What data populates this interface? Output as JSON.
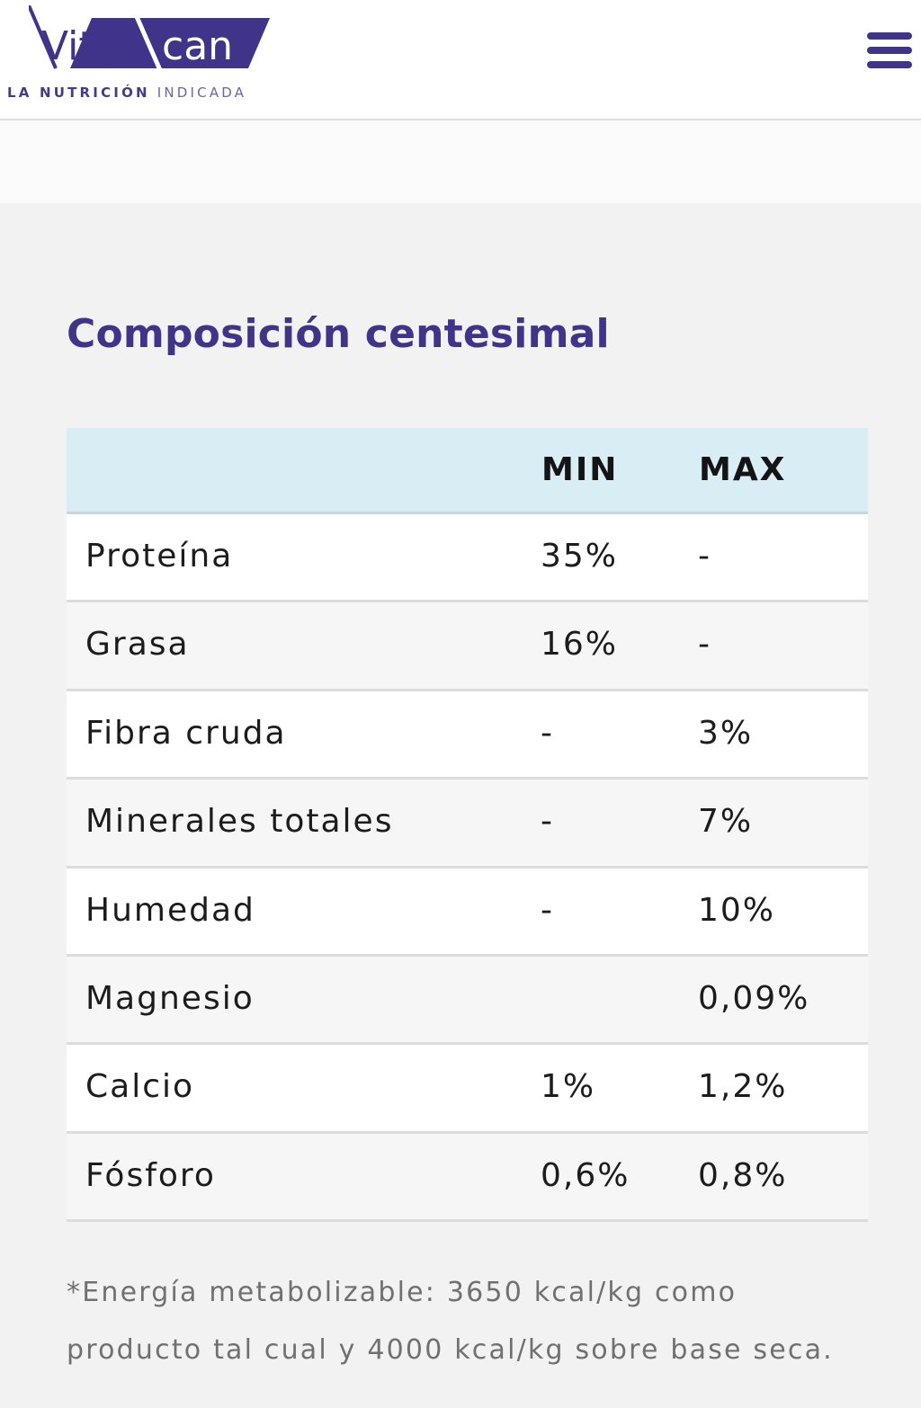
{
  "brand": {
    "name_part1": "Vital",
    "name_part2": "can",
    "tagline_part1": "LA NUTRICIÓN",
    "tagline_part2": "INDICADA",
    "colors": {
      "primary": "#3f3489",
      "header_bg": "#ffffff",
      "table_header_bg": "#d9eef4"
    }
  },
  "header": {
    "menu_icon": "hamburger-menu-icon"
  },
  "section": {
    "title": "Composición centesimal"
  },
  "table": {
    "columns": [
      "",
      "MIN",
      "MAX"
    ],
    "rows": [
      {
        "name": "Proteína",
        "min": "35%",
        "max": "-"
      },
      {
        "name": "Grasa",
        "min": "16%",
        "max": "-"
      },
      {
        "name": "Fibra cruda",
        "min": "-",
        "max": "3%"
      },
      {
        "name": "Minerales totales",
        "min": "-",
        "max": "7%"
      },
      {
        "name": "Humedad",
        "min": "-",
        "max": "10%"
      },
      {
        "name": "Magnesio",
        "min": "",
        "max": "0,09%"
      },
      {
        "name": "Calcio",
        "min": "1%",
        "max": "1,2%"
      },
      {
        "name": "Fósforo",
        "min": "0,6%",
        "max": "0,8%"
      }
    ]
  },
  "footnote": {
    "line1": "*Energía metabolizable: 3650 kcal/kg como",
    "line2": "producto tal cual y 4000 kcal/kg sobre base seca."
  }
}
